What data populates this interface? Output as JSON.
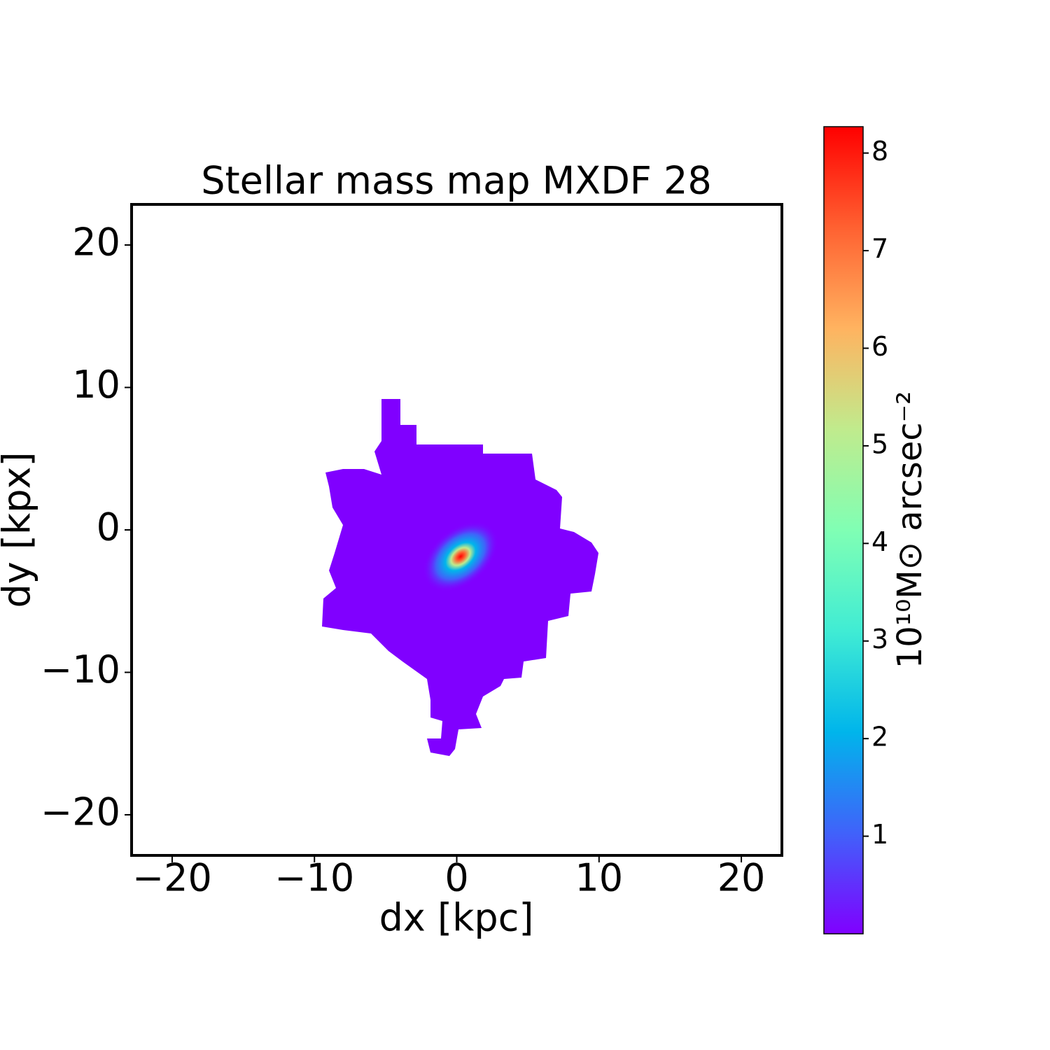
{
  "chart_data": {
    "type": "heatmap",
    "title": "Stellar mass map MXDF 28",
    "x_label": "dx [kpc]",
    "y_label": "dy [kpx]",
    "xlim": [
      -22.85,
      22.85
    ],
    "ylim": [
      -22.85,
      22.85
    ],
    "xticks": [
      {
        "value": -20,
        "label": "−20"
      },
      {
        "value": -10,
        "label": "−10"
      },
      0,
      10,
      20
    ],
    "yticks": [
      {
        "value": -20,
        "label": "−20"
      },
      {
        "value": -10,
        "label": "−10"
      },
      0,
      10,
      20
    ],
    "colormap": "rainbow",
    "colorbar_label": "10¹⁰M⊙ arcsec⁻²",
    "clim": [
      0,
      8.27
    ],
    "cticks": [
      1,
      2,
      3,
      4,
      5,
      6,
      7,
      8
    ]
  }
}
